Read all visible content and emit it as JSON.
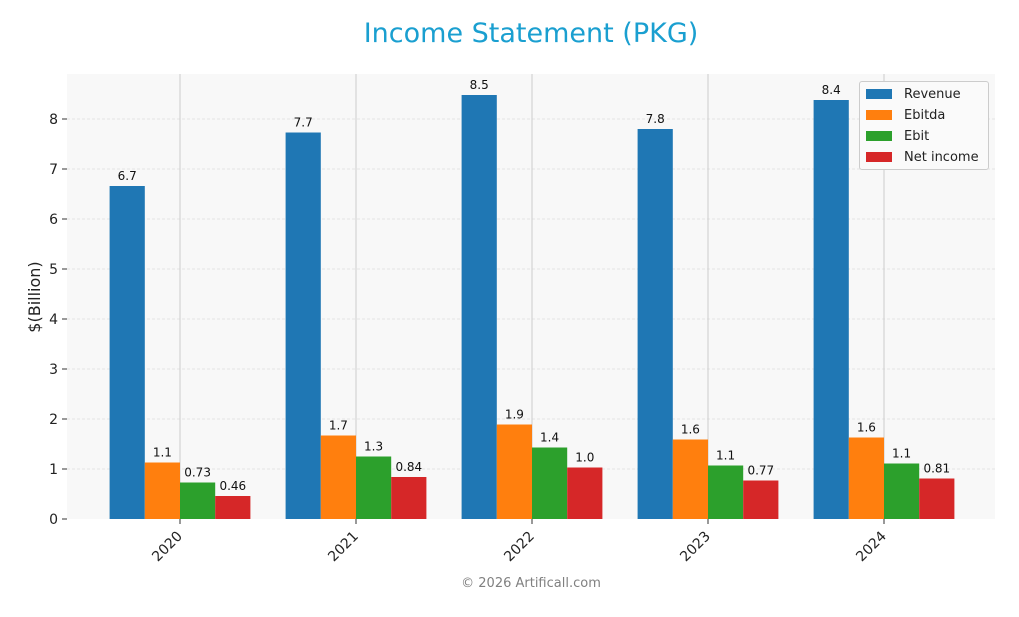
{
  "title": "Income Statement (PKG)",
  "footer": "© 2026 Artificall.com",
  "chart_data": {
    "type": "bar",
    "title": "Income Statement (PKG)",
    "xlabel": "",
    "ylabel": "$(Billion)",
    "ylim": [
      0,
      8.9
    ],
    "yticks": [
      0,
      1,
      2,
      3,
      4,
      5,
      6,
      7,
      8
    ],
    "grid": true,
    "legend_position": "upper right",
    "categories": [
      "2020",
      "2021",
      "2022",
      "2023",
      "2024"
    ],
    "series": [
      {
        "name": "Revenue",
        "color": "#1f77b4",
        "values": [
          6.66,
          7.73,
          8.48,
          7.8,
          8.38
        ],
        "labels": [
          "6.7",
          "7.7",
          "8.5",
          "7.8",
          "8.4"
        ]
      },
      {
        "name": "Ebitda",
        "color": "#ff7f0e",
        "values": [
          1.13,
          1.67,
          1.89,
          1.59,
          1.63
        ],
        "labels": [
          "1.1",
          "1.7",
          "1.9",
          "1.6",
          "1.6"
        ]
      },
      {
        "name": "Ebit",
        "color": "#2ca02c",
        "values": [
          0.73,
          1.25,
          1.43,
          1.07,
          1.11
        ],
        "labels": [
          "0.73",
          "1.3",
          "1.4",
          "1.1",
          "1.1"
        ]
      },
      {
        "name": "Net income",
        "color": "#d62728",
        "values": [
          0.46,
          0.84,
          1.03,
          0.77,
          0.81
        ],
        "labels": [
          "0.46",
          "0.84",
          "1.0",
          "0.77",
          "0.81"
        ]
      }
    ]
  }
}
